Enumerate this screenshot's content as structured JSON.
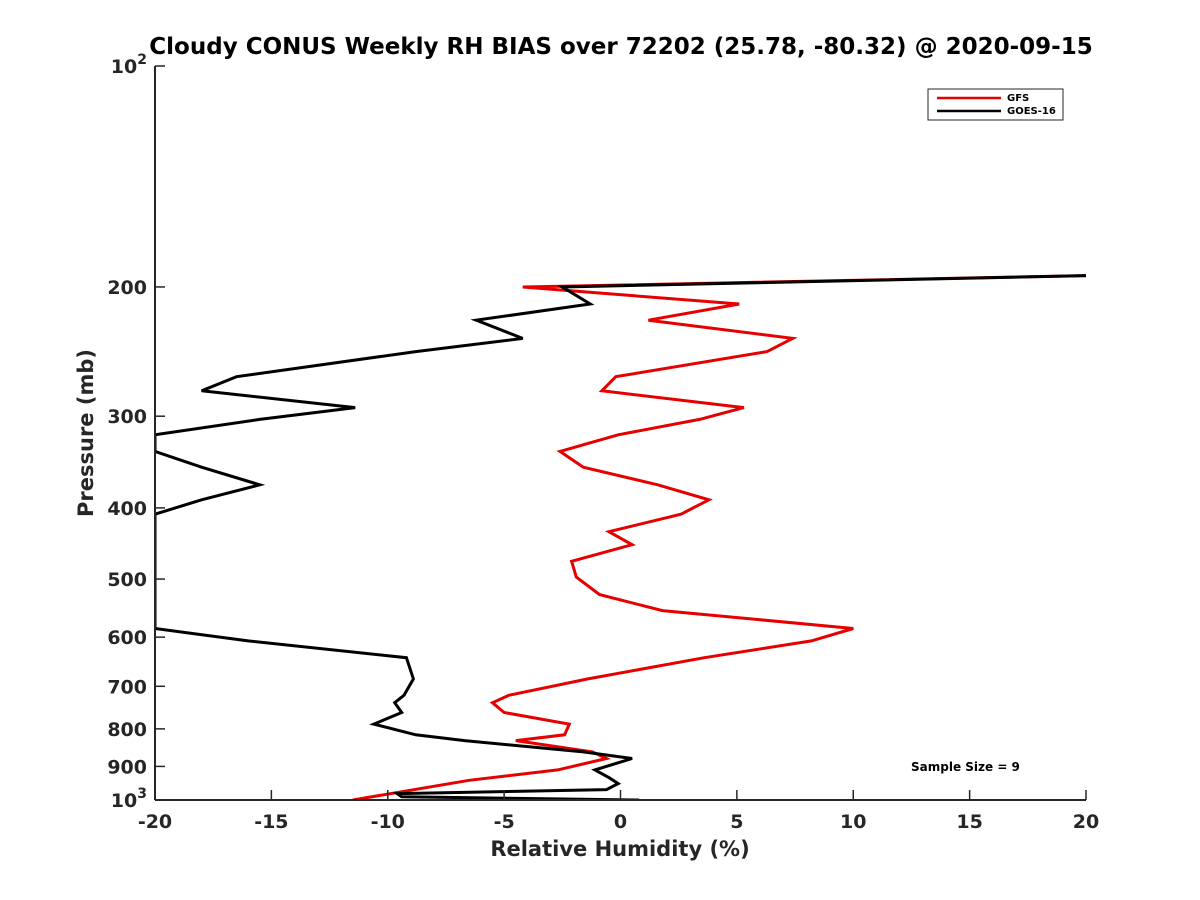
{
  "chart_data": {
    "type": "line",
    "title": "Cloudy CONUS Weekly RH BIAS over 72202 (25.78, -80.32) @ 2020-09-15",
    "xlabel": "Relative Humidity (%)",
    "ylabel": "Pressure (mb)",
    "xlim": [
      -20,
      20
    ],
    "ylim": [
      100,
      1000
    ],
    "y_scale": "log",
    "y_reversed": true,
    "x_ticks": [
      -20,
      -15,
      -10,
      -5,
      0,
      5,
      10,
      15,
      20
    ],
    "x_tick_labels": [
      "-20",
      "-15",
      "-10",
      "-5",
      "0",
      "5",
      "10",
      "15",
      "20"
    ],
    "y_ticks": [
      200,
      300,
      400,
      500,
      600,
      700,
      800,
      900
    ],
    "y_tick_labels": [
      "200",
      "300",
      "400",
      "500",
      "600",
      "700",
      "800",
      "900"
    ],
    "y_end_labels": {
      "top": {
        "base": "10",
        "exp": "2"
      },
      "bottom": {
        "base": "10",
        "exp": "3"
      }
    },
    "grid": false,
    "legend_position": "top-right",
    "annotation": "Sample Size = 9",
    "series": [
      {
        "name": "GFS",
        "color": "#e60000",
        "points": [
          [
            20,
            193
          ],
          [
            -4.2,
            200
          ],
          [
            5.1,
            211
          ],
          [
            1.2,
            222
          ],
          [
            7.4,
            235
          ],
          [
            6.3,
            245
          ],
          [
            -0.2,
            265
          ],
          [
            -0.8,
            277
          ],
          [
            5.3,
            292
          ],
          [
            3.4,
            303
          ],
          [
            -0.1,
            318
          ],
          [
            -2.6,
            335
          ],
          [
            -1.6,
            352
          ],
          [
            1.6,
            372
          ],
          [
            3.8,
            390
          ],
          [
            2.6,
            408
          ],
          [
            -0.5,
            431
          ],
          [
            0.5,
            449
          ],
          [
            -2.1,
            473
          ],
          [
            -1.9,
            497
          ],
          [
            -0.9,
            525
          ],
          [
            1.8,
            552
          ],
          [
            10.0,
            584
          ],
          [
            8.2,
            607
          ],
          [
            3.6,
            640
          ],
          [
            -1.4,
            684
          ],
          [
            -4.8,
            720
          ],
          [
            -5.5,
            737
          ],
          [
            -5.0,
            760
          ],
          [
            -2.2,
            788
          ],
          [
            -2.4,
            815
          ],
          [
            -4.5,
            830
          ],
          [
            -1.2,
            860
          ],
          [
            -0.6,
            878
          ],
          [
            -2.7,
            910
          ],
          [
            -6.5,
            940
          ],
          [
            -11.5,
            1000
          ]
        ]
      },
      {
        "name": "GOES-16",
        "color": "#000000",
        "points": [
          [
            20,
            193
          ],
          [
            -2.5,
            200
          ],
          [
            -1.3,
            211
          ],
          [
            -6.2,
            222
          ],
          [
            -4.2,
            235
          ],
          [
            -8.8,
            245
          ],
          [
            -16.5,
            265
          ],
          [
            -18.0,
            277
          ],
          [
            -11.4,
            292
          ],
          [
            -15.5,
            303
          ],
          [
            -20.0,
            318
          ],
          [
            -20.0,
            335
          ],
          [
            -18.0,
            352
          ],
          [
            -15.5,
            372
          ],
          [
            -18.0,
            390
          ],
          [
            -20.0,
            408
          ],
          [
            -20.0,
            473
          ],
          [
            -20.0,
            584
          ],
          [
            -16.0,
            607
          ],
          [
            -9.2,
            640
          ],
          [
            -8.9,
            684
          ],
          [
            -9.3,
            720
          ],
          [
            -9.7,
            737
          ],
          [
            -9.4,
            760
          ],
          [
            -10.6,
            788
          ],
          [
            -8.8,
            815
          ],
          [
            -6.7,
            830
          ],
          [
            -1.6,
            860
          ],
          [
            0.5,
            878
          ],
          [
            -1.1,
            910
          ],
          [
            -0.5,
            932
          ],
          [
            -0.1,
            950
          ],
          [
            -0.6,
            968
          ],
          [
            -9.6,
            980
          ],
          [
            -9.4,
            990
          ],
          [
            0.8,
            1000
          ]
        ]
      }
    ]
  }
}
